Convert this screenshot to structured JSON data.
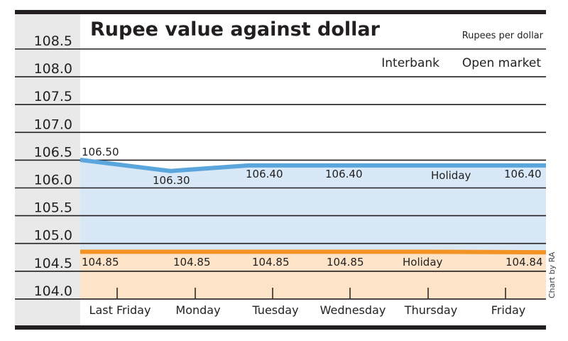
{
  "chart_data": {
    "type": "line",
    "title": "Rupee value against dollar",
    "ylabel": "Rupees per dollar",
    "credit": "Chart by RA",
    "categories": [
      "Last Friday",
      "Monday",
      "Tuesday",
      "Wednesday",
      "Thursday",
      "Friday"
    ],
    "ylim": [
      104.0,
      108.5
    ],
    "yticks": [
      "108.5",
      "108.0",
      "107.5",
      "107.0",
      "106.5",
      "106.0",
      "105.5",
      "105.0",
      "104.5",
      "104.0"
    ],
    "grid": true,
    "legend": [
      "Interbank",
      "Open market"
    ],
    "legend_position": "top-right",
    "series": [
      {
        "name": "Open market",
        "color": "#5aa6dc",
        "fill": "#d9e8f6",
        "values": [
          106.5,
          106.3,
          106.4,
          106.4,
          null,
          106.4
        ],
        "labels": [
          "106.50",
          "106.30",
          "106.40",
          "106.40",
          "Holiday",
          "106.40"
        ]
      },
      {
        "name": "Interbank",
        "color": "#f39324",
        "fill": "#fde3c8",
        "values": [
          104.85,
          104.85,
          104.85,
          104.85,
          null,
          104.84
        ],
        "labels": [
          "104.85",
          "104.85",
          "104.85",
          "104.85",
          "Holiday",
          "104.84"
        ]
      }
    ]
  }
}
